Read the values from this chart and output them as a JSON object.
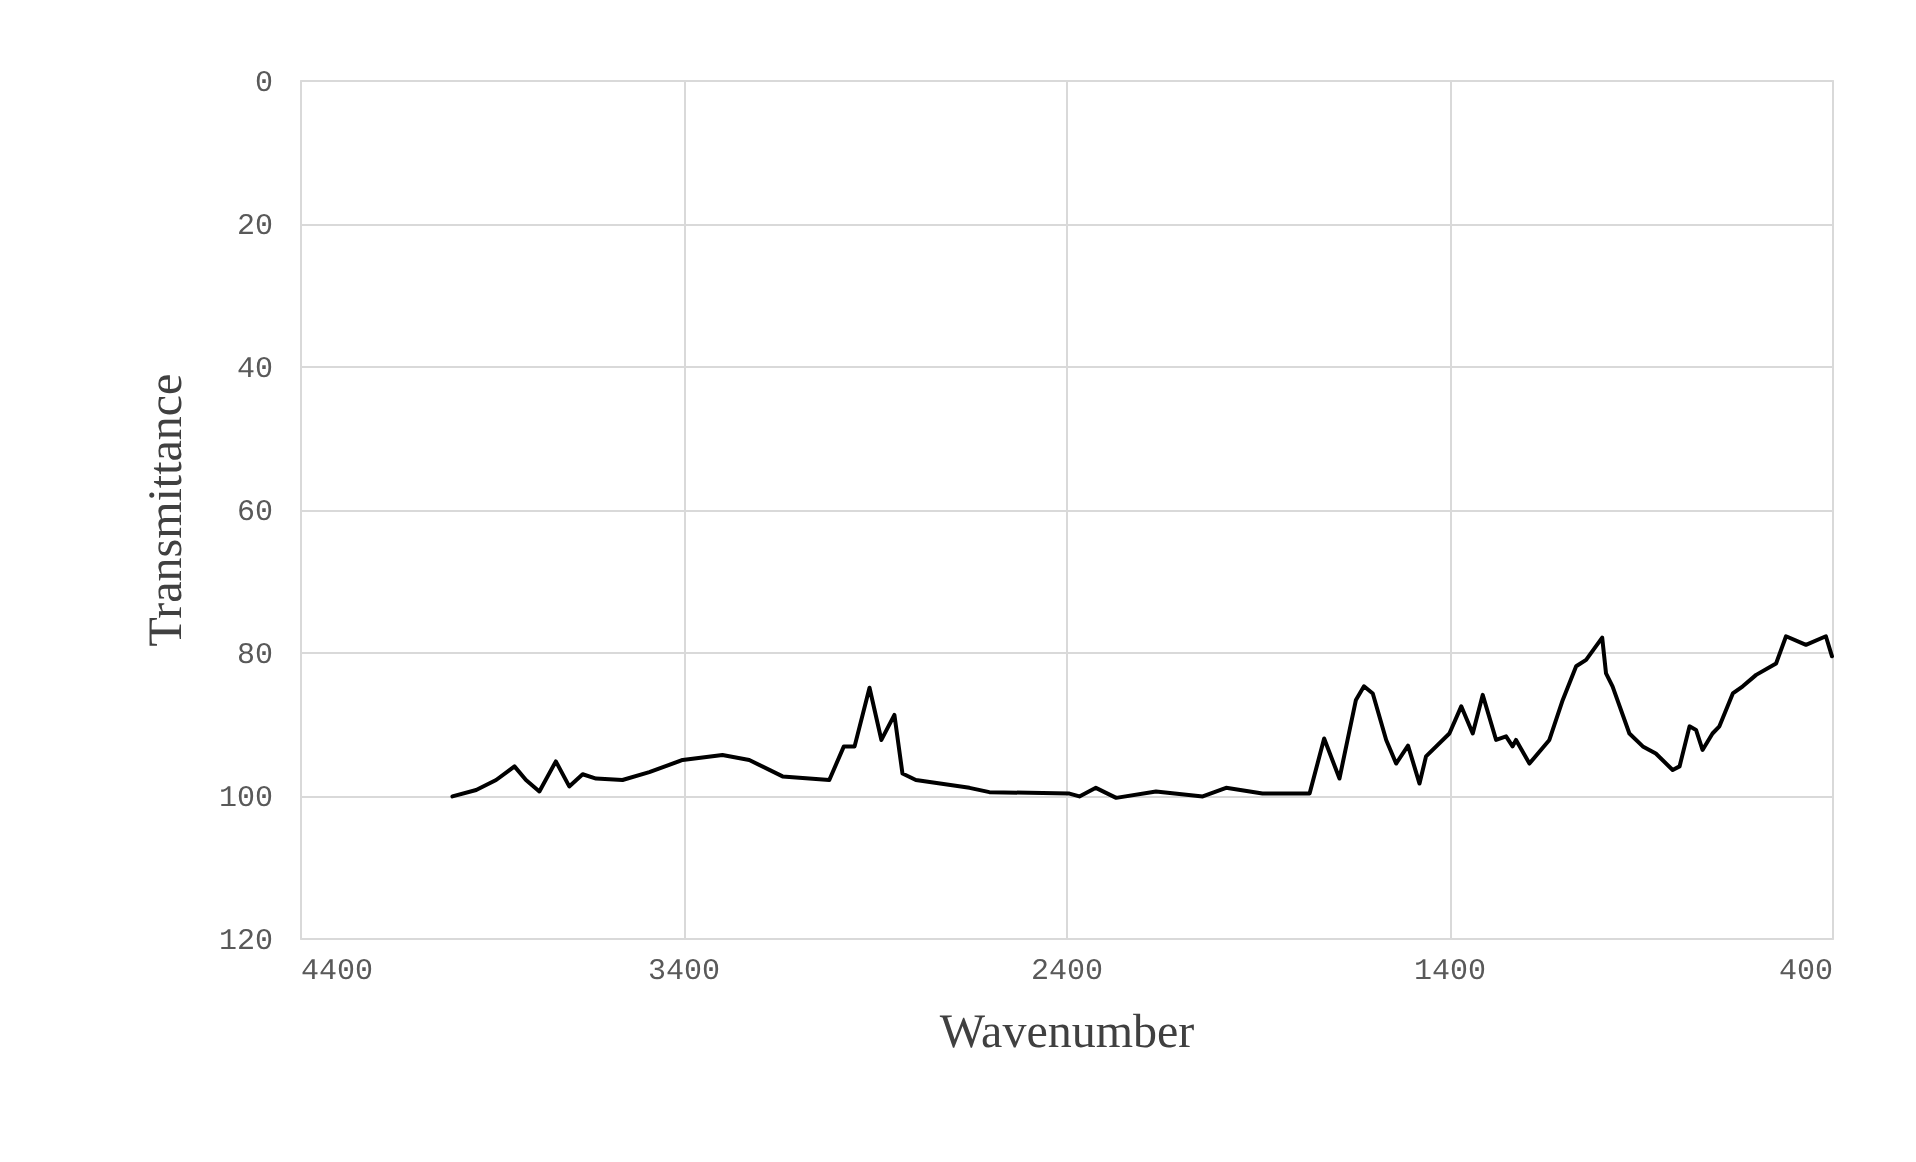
{
  "chart_data": {
    "type": "line",
    "xlabel": "Wavenumber",
    "ylabel": "Transmittance",
    "xlim": [
      4400,
      400
    ],
    "xticks": [
      4400,
      3400,
      2400,
      1400,
      400
    ],
    "ylim": [
      120,
      0
    ],
    "yticks": [
      0,
      20,
      40,
      60,
      80,
      100,
      120
    ],
    "grid": true,
    "marker": "none",
    "line_style": "solid",
    "x": [
      4002,
      3940,
      3888,
      3840,
      3810,
      3775,
      3732,
      3697,
      3662,
      3627,
      3558,
      3488,
      3401,
      3297,
      3227,
      3140,
      3018,
      2980,
      2952,
      2913,
      2882,
      2848,
      2827,
      2792,
      2652,
      2600,
      2391,
      2365,
      2322,
      2269,
      2165,
      2043,
      1982,
      1887,
      1764,
      1726,
      1686,
      1643,
      1622,
      1599,
      1564,
      1538,
      1507,
      1477,
      1460,
      1399,
      1368,
      1338,
      1312,
      1277,
      1251,
      1234,
      1225,
      1190,
      1138,
      1103,
      1068,
      1042,
      1000,
      990,
      973,
      929,
      894,
      860,
      816,
      798,
      772,
      755,
      738,
      712,
      694,
      659,
      633,
      598,
      546,
      520,
      468,
      416,
      400
    ],
    "series": [
      {
        "color": "#000000",
        "values": [
          100.2,
          99.3,
          97.9,
          96.0,
          97.9,
          99.5,
          95.3,
          98.8,
          97.1,
          97.7,
          97.9,
          96.8,
          95.1,
          94.4,
          95.1,
          97.4,
          97.9,
          93.2,
          93.2,
          85.0,
          92.3,
          88.8,
          97.0,
          97.9,
          99.0,
          99.6,
          99.8,
          100.2,
          99.0,
          100.4,
          99.5,
          100.2,
          99.0,
          99.8,
          99.8,
          92.1,
          97.7,
          86.7,
          84.8,
          85.8,
          92.3,
          95.6,
          93.1,
          98.4,
          94.6,
          91.4,
          87.6,
          91.4,
          86.0,
          92.3,
          91.8,
          93.2,
          92.3,
          95.6,
          92.3,
          86.7,
          82.0,
          81.1,
          78.0,
          83.0,
          84.8,
          91.4,
          93.2,
          94.2,
          96.5,
          96.0,
          90.4,
          90.9,
          93.7,
          91.4,
          90.4,
          85.8,
          84.8,
          83.2,
          81.6,
          77.8,
          79.0,
          77.8,
          80.6
        ]
      }
    ]
  }
}
